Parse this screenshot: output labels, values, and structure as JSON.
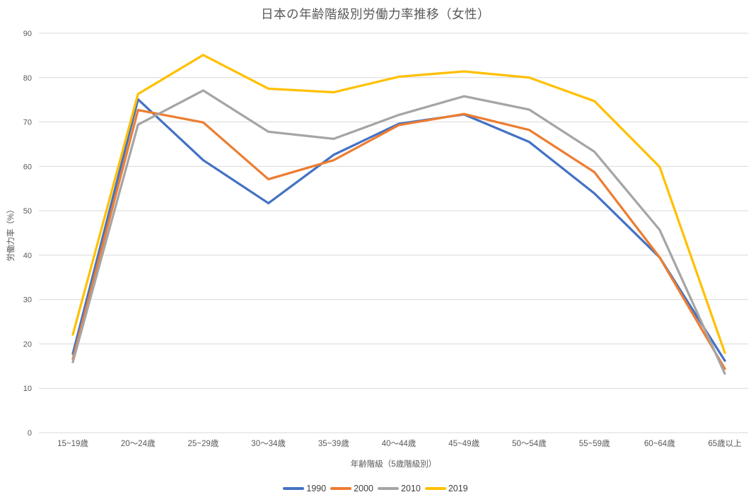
{
  "chart_data": {
    "type": "line",
    "title": "日本の年齢階級別労働力率推移（女性）",
    "xlabel": "年齢階級（5歳階級別）",
    "ylabel": "労働力率（%）",
    "ylim": [
      0,
      90
    ],
    "ytick_step": 10,
    "grid": "horizontal",
    "gridline_color": "#D9D9D9",
    "tick_label_color": "#595959",
    "legend_position": "bottom",
    "categories": [
      "15~19歳",
      "20〜24歳",
      "25~29歳",
      "30〜34歳",
      "35~39歳",
      "40〜44歳",
      "45~49歳",
      "50〜54歳",
      "55~59歳",
      "60~64歳",
      "65歳以上"
    ],
    "series": [
      {
        "name": "1990",
        "color": "#4472C4",
        "values": [
          17.8,
          75.1,
          61.4,
          51.7,
          62.6,
          69.6,
          71.7,
          65.5,
          53.9,
          39.5,
          16.2
        ]
      },
      {
        "name": "2000",
        "color": "#ED7D31",
        "values": [
          16.6,
          72.7,
          69.9,
          57.1,
          61.4,
          69.3,
          71.8,
          68.2,
          58.7,
          39.5,
          14.4
        ]
      },
      {
        "name": "2010",
        "color": "#A5A5A5",
        "values": [
          15.9,
          69.4,
          77.1,
          67.8,
          66.2,
          71.6,
          75.8,
          72.8,
          63.3,
          45.7,
          13.3
        ]
      },
      {
        "name": "2019",
        "color": "#FFC000",
        "values": [
          22.1,
          76.3,
          85.1,
          77.5,
          76.7,
          80.2,
          81.4,
          80.0,
          74.7,
          59.9,
          18.0
        ]
      }
    ]
  }
}
